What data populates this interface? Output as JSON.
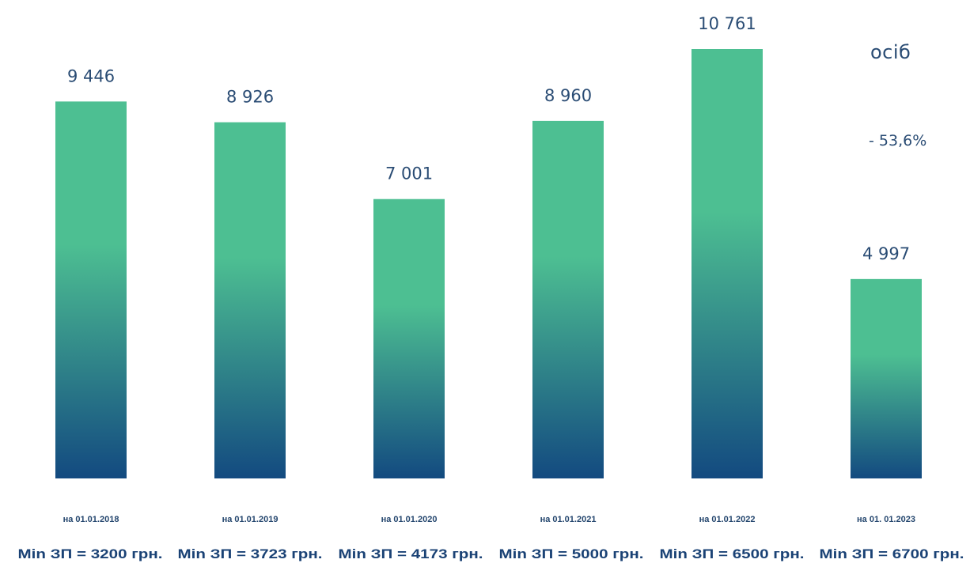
{
  "unit_label": "осіб",
  "change_label": "- 53,6%",
  "colors": {
    "bar_top": "#4dbf92",
    "bar_bottom": "#134a80",
    "value_text": "#2a4c74",
    "date_text": "#24466e",
    "minwage_text": "#1a4275"
  },
  "chart_data": {
    "type": "bar",
    "categories": [
      "на 01.01.2018",
      "на 01.01.2019",
      "на 01.01.2020",
      "на 01.01.2021",
      "на 01.01.2022",
      "на 01. 01.2023"
    ],
    "values": [
      9446,
      8926,
      7001,
      8960,
      10761,
      4997
    ],
    "value_labels": [
      "9 446",
      "8 926",
      "7 001",
      "8 960",
      "10 761",
      "4 997"
    ],
    "min_wage_labels": [
      "Min ЗП = 3200 грн.",
      "Min ЗП = 3723 грн.",
      "Min ЗП = 4173 грн.",
      "Min ЗП = 5000 грн.",
      "Min ЗП = 6500 грн.",
      "Min ЗП = 6700 грн."
    ],
    "grid": false
  }
}
